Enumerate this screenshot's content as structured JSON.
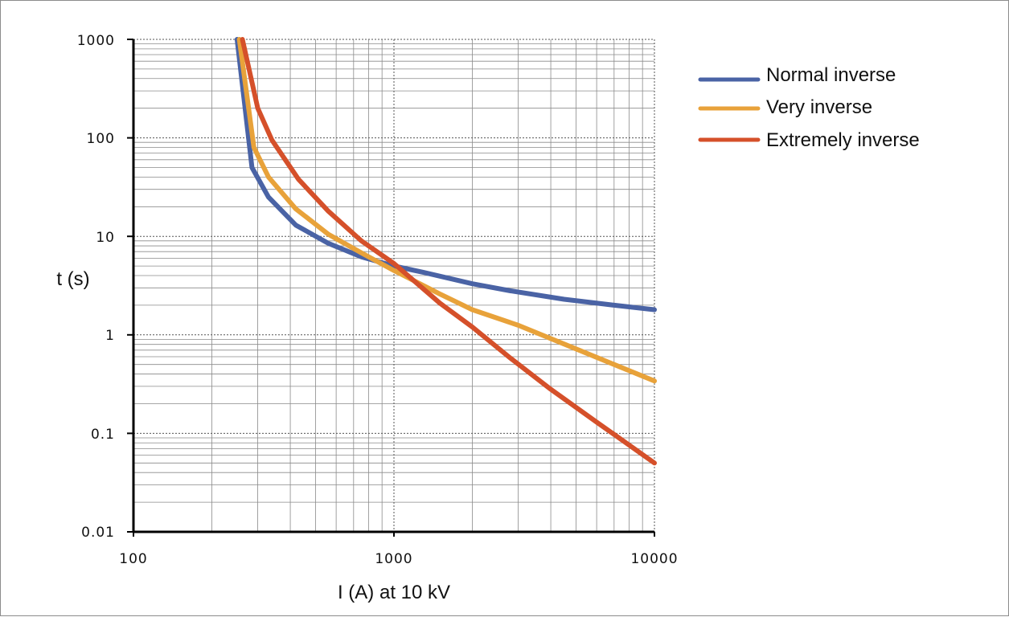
{
  "chart_data": {
    "type": "line",
    "title": "",
    "xlabel": "I (A) at 10 kV",
    "ylabel": "t (s)",
    "xscale": "log",
    "yscale": "log",
    "xlim": [
      100,
      10000
    ],
    "ylim": [
      0.01,
      1000
    ],
    "x_ticks": [
      "100",
      "1000",
      "10000"
    ],
    "y_ticks": [
      "1000",
      "100",
      "10",
      "1",
      "0.1",
      "0.01"
    ],
    "grid": true,
    "legend_position": "top-right",
    "series": [
      {
        "name": "Normal inverse",
        "color": "#4a63a5",
        "x": [
          250,
          285,
          330,
          420,
          560,
          750,
          1000,
          1300,
          2000,
          2800,
          4500,
          7000,
          10000
        ],
        "y": [
          1000,
          50,
          25,
          13,
          8.5,
          6.2,
          5.0,
          4.3,
          3.3,
          2.8,
          2.3,
          2.0,
          1.8
        ]
      },
      {
        "name": "Very inverse",
        "color": "#e8a23a",
        "x": [
          255,
          290,
          330,
          420,
          560,
          750,
          1000,
          1500,
          2000,
          3000,
          5000,
          7000,
          10000
        ],
        "y": [
          1000,
          80,
          40,
          19,
          10.5,
          6.8,
          4.5,
          2.6,
          1.8,
          1.25,
          0.72,
          0.5,
          0.34
        ]
      },
      {
        "name": "Extremely inverse",
        "color": "#d5502a",
        "x": [
          262,
          300,
          340,
          430,
          560,
          750,
          1000,
          1500,
          2000,
          2800,
          4000,
          6000,
          10000
        ],
        "y": [
          1000,
          200,
          95,
          38,
          18,
          9.0,
          5.3,
          2.1,
          1.2,
          0.58,
          0.28,
          0.13,
          0.05
        ]
      }
    ]
  }
}
